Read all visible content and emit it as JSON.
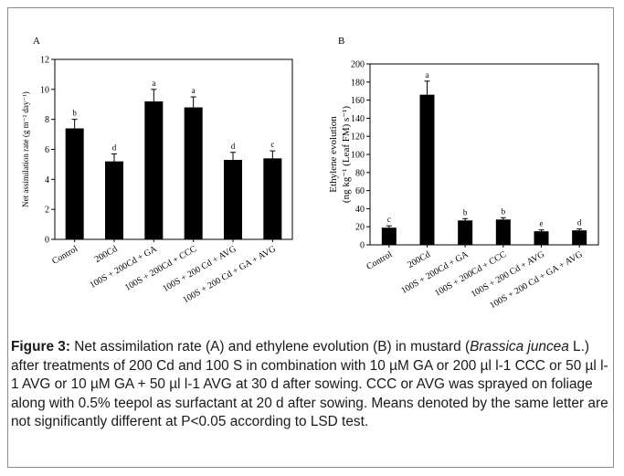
{
  "chart_data": [
    {
      "type": "bar",
      "panel_label": "A",
      "ylabel": "Net assimilation rate (g m⁻² day⁻¹)",
      "ylim": [
        0,
        12
      ],
      "yticks": [
        "0",
        "2",
        "4",
        "6",
        "8",
        "10",
        "12"
      ],
      "categories": [
        "Control",
        "200Cd",
        "100S + 200Cd + GA",
        "100S + 200Cd + CCC",
        "100S + 200 Cd + AVG",
        "100S + 200 Cd + GA + AVG"
      ],
      "values": [
        7.4,
        5.2,
        9.2,
        8.8,
        5.3,
        5.4
      ],
      "errors": [
        0.6,
        0.5,
        0.8,
        0.7,
        0.5,
        0.5
      ],
      "letters": [
        "b",
        "d",
        "a",
        "a",
        "d",
        "c"
      ]
    },
    {
      "type": "bar",
      "panel_label": "B",
      "ylabel_line1": "Ethylene evolution",
      "ylabel_line2": "(ng kg⁻¹ (Leaf FM) s⁻¹)",
      "ylim": [
        0,
        200
      ],
      "yticks": [
        "0",
        "20",
        "40",
        "60",
        "80",
        "100",
        "120",
        "140",
        "160",
        "180",
        "200"
      ],
      "categories": [
        "Control",
        "200Cd",
        "100S + 200Cd + GA",
        "100S + 200Cd + CCC",
        "100S + 200 Cd + AVG",
        "100S + 200 Cd + GA + AVG"
      ],
      "values": [
        19,
        166,
        27,
        28,
        15,
        16
      ],
      "errors": [
        2,
        15,
        2,
        2,
        1.5,
        1.5
      ],
      "letters": [
        "c",
        "a",
        "b",
        "b",
        "e",
        "d"
      ]
    }
  ],
  "caption": {
    "label": "Figure 3:",
    "part1": " Net assimilation rate (A) and ethylene evolution (B) in mustard (",
    "species": "Brassica juncea",
    "part2": " L.) after treatments of 200 Cd and 100 S in combination with 10 µM GA or 200 µl l-1 CCC or 50 µl l-1 AVG or 10 µM GA + 50 µl l-1 AVG at 30 d after sowing. CCC or AVG was sprayed on foliage along with 0.5% teepol as surfactant at 20 d after sowing. Means denoted by the same letter are not significantly different at P<0.05 according to LSD test."
  }
}
